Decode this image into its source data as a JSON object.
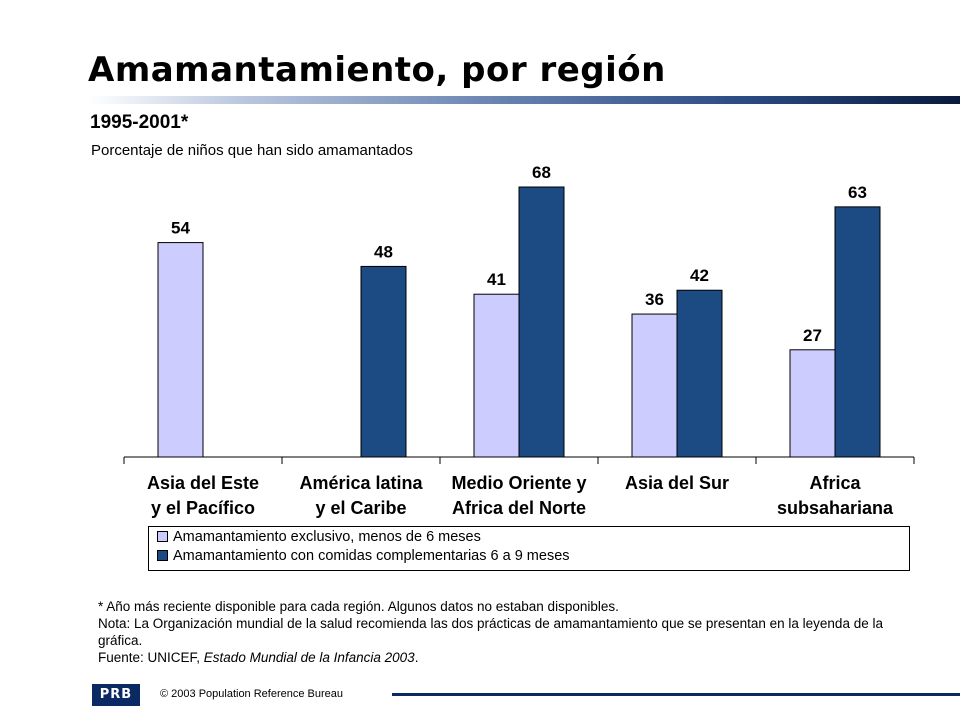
{
  "title": "Amamantamiento, por región",
  "subtitle": "1995-2001*",
  "units": "Porcentaje de niños que han sido amamantados",
  "colors": {
    "series1": "#ccccff",
    "series2": "#1c4a82"
  },
  "chart_data": {
    "type": "bar",
    "categories": [
      [
        "Asia del Este",
        "y el Pacífico"
      ],
      [
        "América latina",
        "y  el Caribe"
      ],
      [
        "Medio Oriente y",
        "Africa del Norte"
      ],
      [
        "Asia del Sur"
      ],
      [
        "Africa",
        "subsahariana"
      ]
    ],
    "series": [
      {
        "name": "Amamantamiento exclusivo, menos de 6 meses",
        "values": [
          54,
          null,
          41,
          36,
          27
        ],
        "color": "#ccccff"
      },
      {
        "name": "Amamantamiento con comidas complementarias 6 a 9 meses",
        "values": [
          null,
          48,
          68,
          42,
          63
        ],
        "color": "#1c4a82"
      }
    ],
    "ylim": [
      0,
      70
    ],
    "grid": false,
    "legend_position": "bottom"
  },
  "notes": {
    "line1": "* Año más reciente disponible para cada región. Algunos datos no estaban disponibles.",
    "line2": "Nota: La Organización mundial de la salud recomienda las dos prácticas de amamantamiento que se presentan en la leyenda de la gráfica.",
    "source_prefix": "Fuente: UNICEF, ",
    "source_title": "Estado Mundial de la Infancia 2003",
    "source_suffix": "."
  },
  "footer": {
    "logo_text": "PRB",
    "copyright": "© 2003 Population Reference Bureau"
  }
}
